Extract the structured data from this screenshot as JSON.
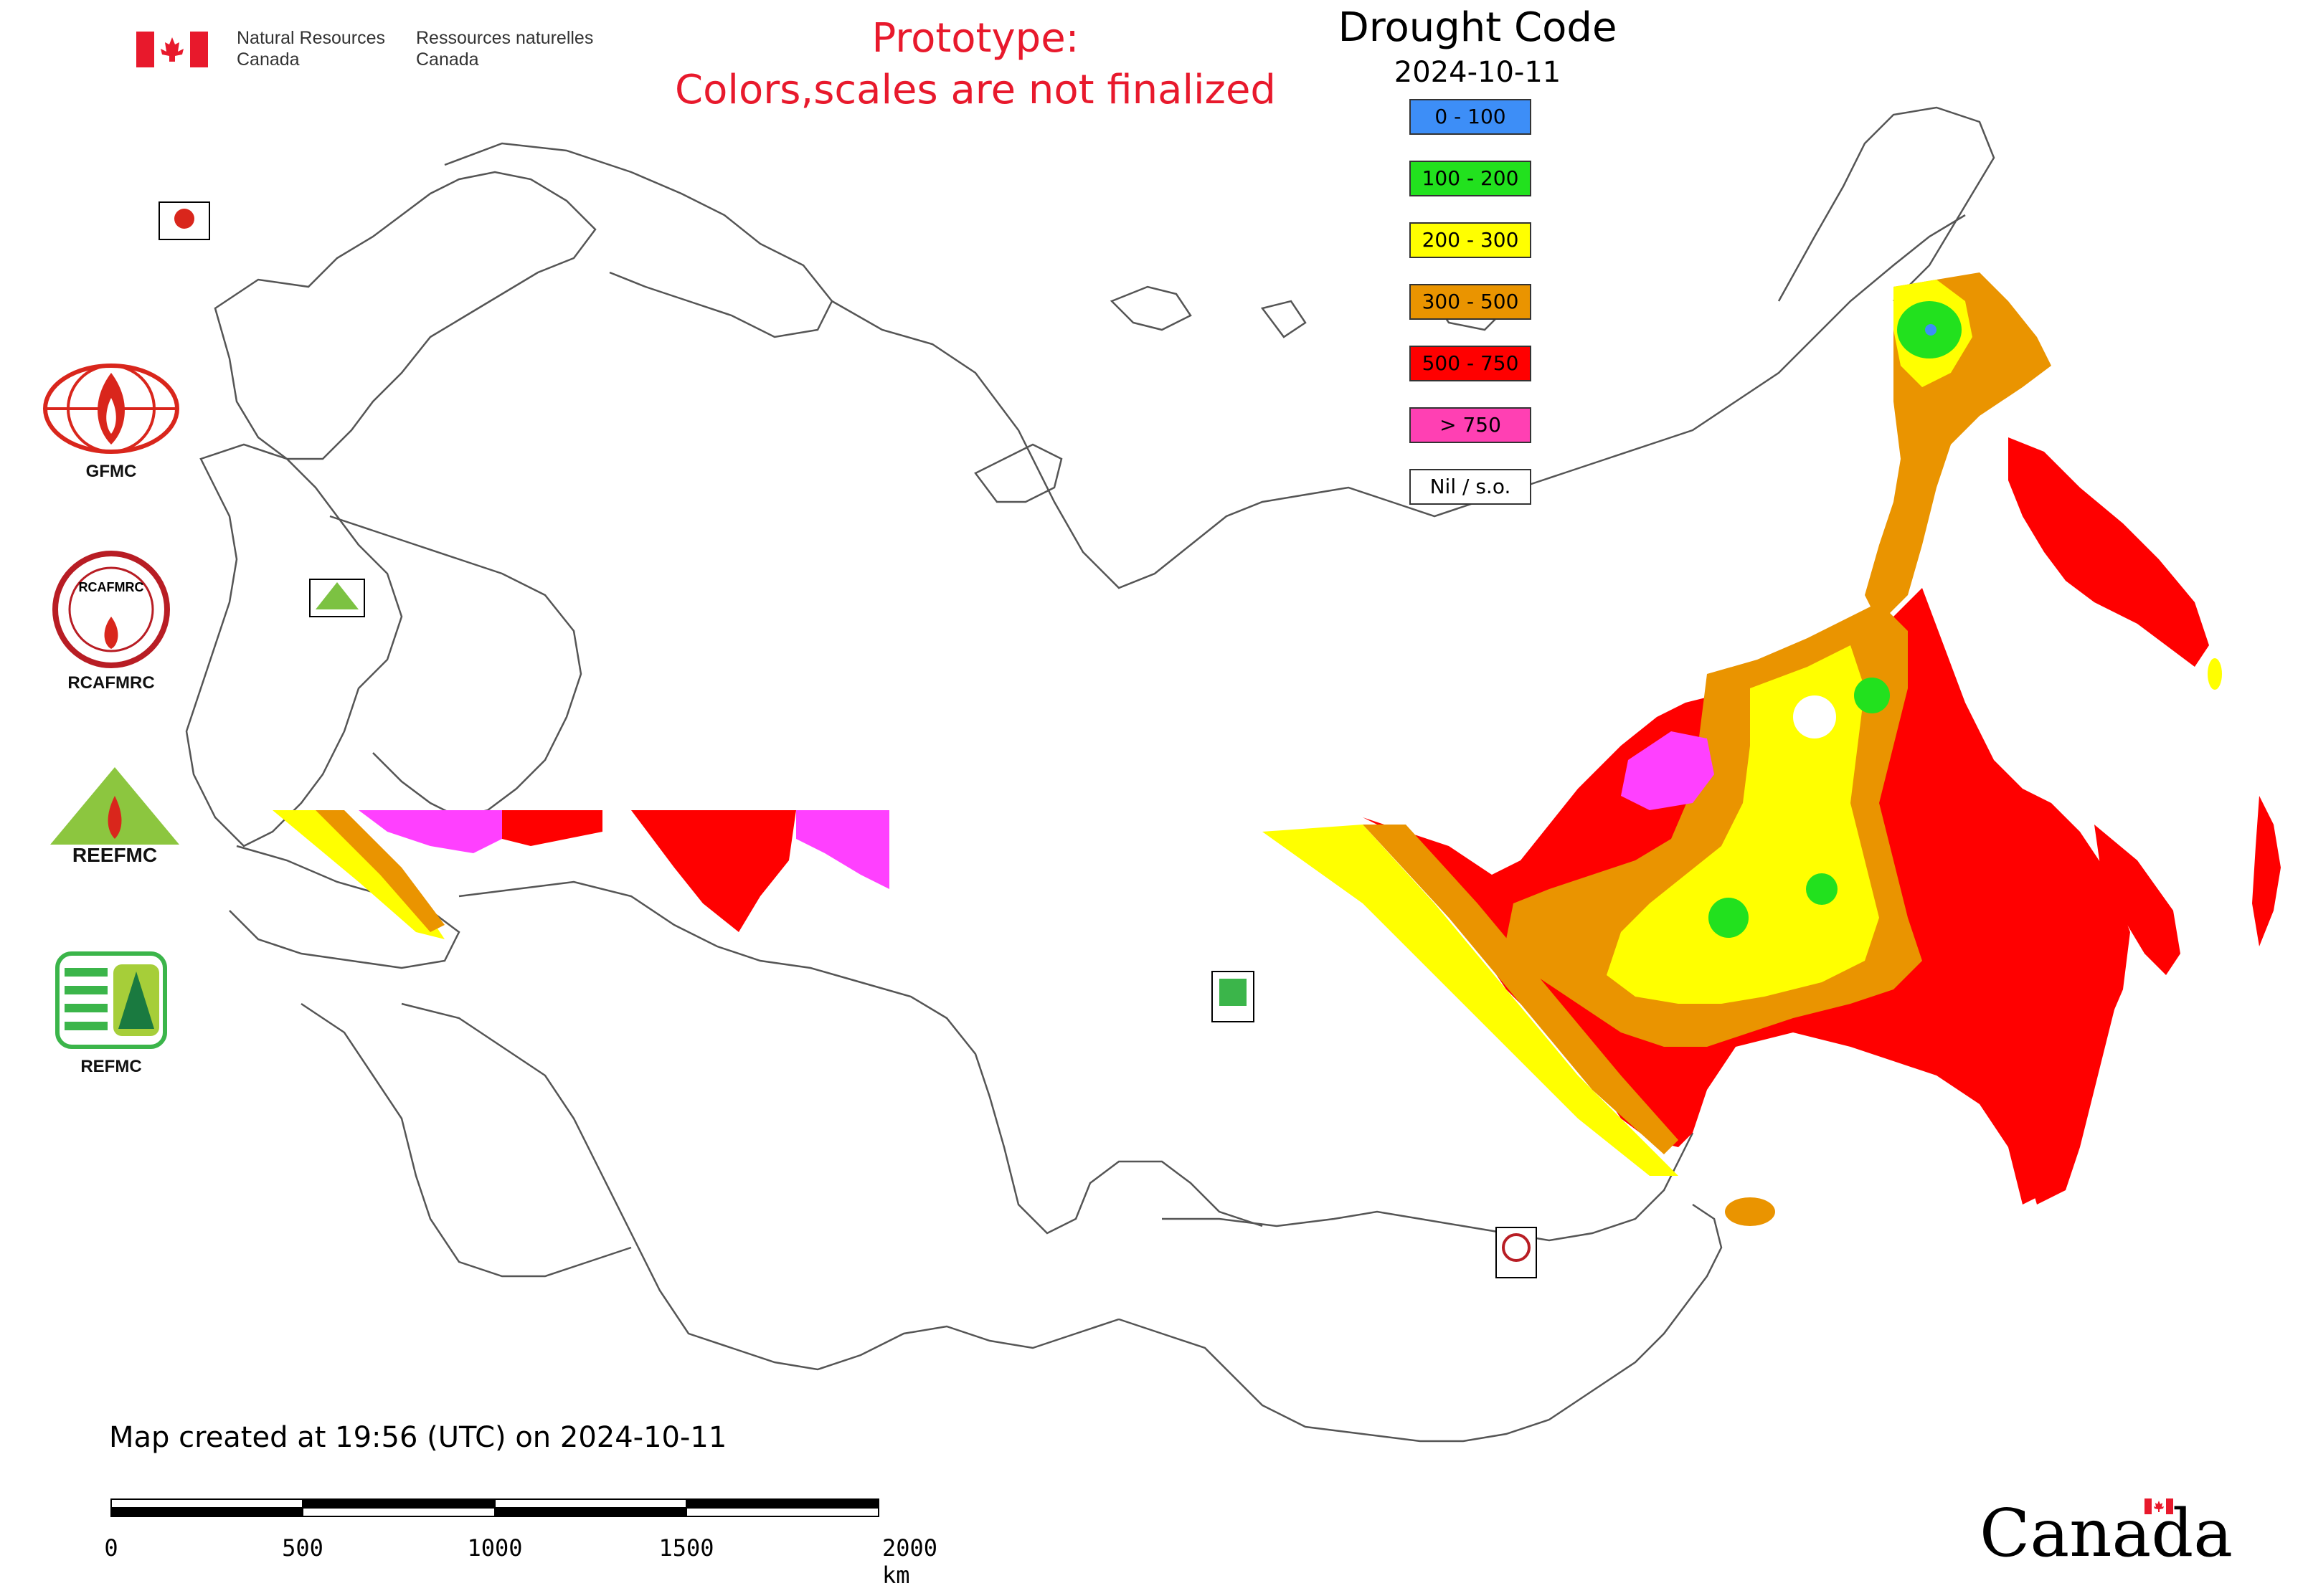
{
  "header": {
    "department_en_line1": "Natural Resources",
    "department_en_line2": "Canada",
    "department_fr_line1": "Ressources naturelles",
    "department_fr_line2": "Canada",
    "prototype_line1": "Prototype:",
    "prototype_line2": "Colors,scales are not finalized"
  },
  "legend": {
    "title": "Drought Code",
    "date": "2024-10-11",
    "items": [
      {
        "label": "0 - 100",
        "color": "#3d8ef7"
      },
      {
        "label": "100 - 200",
        "color": "#22e11e"
      },
      {
        "label": "200 - 300",
        "color": "#ffff00"
      },
      {
        "label": "300 - 500",
        "color": "#ea9400"
      },
      {
        "label": "500 - 750",
        "color": "#ff0000"
      },
      {
        "label": "> 750",
        "color": "#ff40b3"
      },
      {
        "label": "Nil / s.o.",
        "color": "#ffffff"
      }
    ]
  },
  "agencies": [
    {
      "label": "GFMC"
    },
    {
      "label": "RCAFMRC"
    },
    {
      "label": ""
    },
    {
      "label": "REFMC"
    }
  ],
  "logo_lettering": {
    "reefmc": "REEFMC",
    "rcafmrc_badge": "RCAFMRC"
  },
  "footer": {
    "map_created": "Map created at 19:56 (UTC) on 2024-10-11",
    "scale_labels": [
      "0",
      "500",
      "1000",
      "1500",
      "2000 km"
    ],
    "wordmark": "Canada"
  },
  "colors": {
    "accent_red": "#e8192c",
    "border": "#444444"
  }
}
